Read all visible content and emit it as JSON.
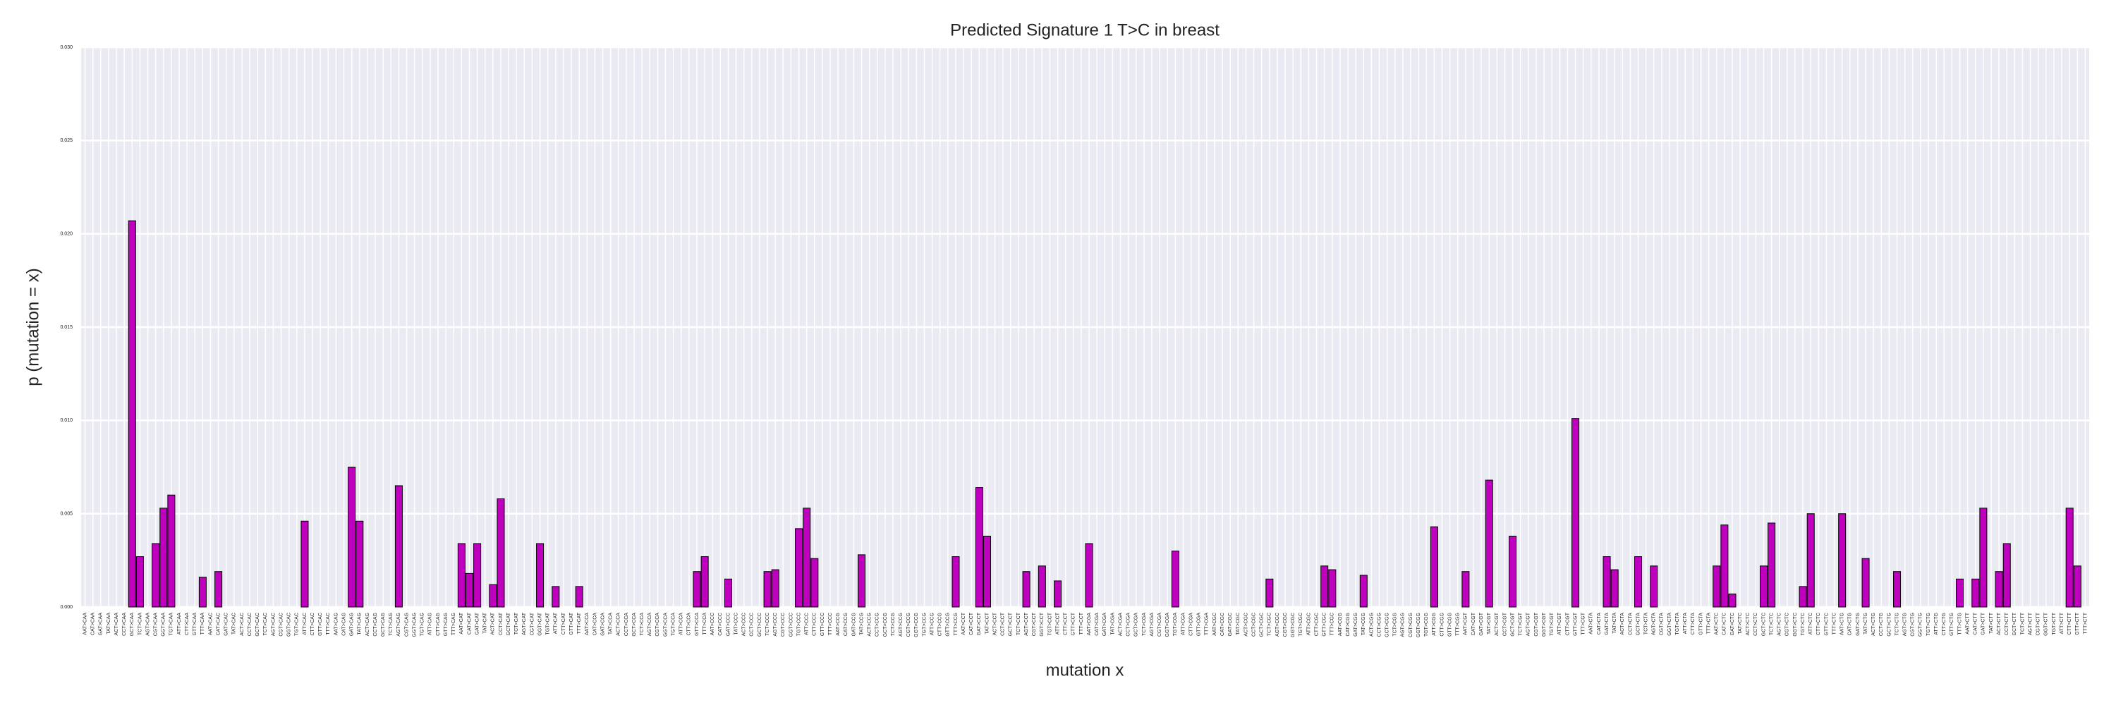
{
  "chart_data": {
    "type": "bar",
    "title": "Predicted Signature 1 T>C in breast",
    "xlabel": "mutation x",
    "ylabel": "p (mutation = x)",
    "color": "#bf00bf",
    "edgecolor": "#000000",
    "grid": true,
    "ylim": [
      0,
      0.03
    ],
    "yticks": [
      {
        "value": 0,
        "label": "0.000"
      },
      {
        "value": 0.005,
        "label": "0.005"
      },
      {
        "value": 0.01,
        "label": "0.010"
      },
      {
        "value": 0.015,
        "label": "0.015"
      },
      {
        "value": 0.02,
        "label": "0.020"
      },
      {
        "value": 0.025,
        "label": "0.025"
      },
      {
        "value": 0.03,
        "label": "0.030"
      }
    ],
    "categories": [
      "AAT>CAA",
      "CAT>CAA",
      "GAT>CAA",
      "TAT>CAA",
      "ACT>CAA",
      "CCT>CAA",
      "GCT>CAA",
      "TCT>CAA",
      "AGT>CAA",
      "CGT>CAA",
      "GGT>CAA",
      "TGT>CAA",
      "ATT>CAA",
      "CTT>CAA",
      "GTT>CAA",
      "TTT>CAA",
      "AAT>CAC",
      "CAT>CAC",
      "GAT>CAC",
      "TAT>CAC",
      "ACT>CAC",
      "CCT>CAC",
      "GCT>CAC",
      "TCT>CAC",
      "AGT>CAC",
      "CGT>CAC",
      "GGT>CAC",
      "TGT>CAC",
      "ATT>CAC",
      "CTT>CAC",
      "GTT>CAC",
      "TTT>CAC",
      "AAT>CAG",
      "CAT>CAG",
      "GAT>CAG",
      "TAT>CAG",
      "ACT>CAG",
      "CCT>CAG",
      "GCT>CAG",
      "TCT>CAG",
      "AGT>CAG",
      "CGT>CAG",
      "GGT>CAG",
      "TGT>CAG",
      "ATT>CAG",
      "CTT>CAG",
      "GTT>CAG",
      "TTT>CAG",
      "AAT>CAT",
      "CAT>CAT",
      "GAT>CAT",
      "TAT>CAT",
      "ACT>CAT",
      "CCT>CAT",
      "GCT>CAT",
      "TCT>CAT",
      "AGT>CAT",
      "CGT>CAT",
      "GGT>CAT",
      "TGT>CAT",
      "ATT>CAT",
      "CTT>CAT",
      "GTT>CAT",
      "TTT>CAT",
      "AAT>CCA",
      "CAT>CCA",
      "GAT>CCA",
      "TAT>CCA",
      "ACT>CCA",
      "CCT>CCA",
      "GCT>CCA",
      "TCT>CCA",
      "AGT>CCA",
      "CGT>CCA",
      "GGT>CCA",
      "TGT>CCA",
      "ATT>CCA",
      "CTT>CCA",
      "GTT>CCA",
      "TTT>CCA",
      "AAT>CCC",
      "CAT>CCC",
      "GAT>CCC",
      "TAT>CCC",
      "ACT>CCC",
      "CCT>CCC",
      "GCT>CCC",
      "TCT>CCC",
      "AGT>CCC",
      "CGT>CCC",
      "GGT>CCC",
      "TGT>CCC",
      "ATT>CCC",
      "CTT>CCC",
      "GTT>CCC",
      "TTT>CCC",
      "AAT>CCG",
      "CAT>CCG",
      "GAT>CCG",
      "TAT>CCG",
      "ACT>CCG",
      "CCT>CCG",
      "GCT>CCG",
      "TCT>CCG",
      "AGT>CCG",
      "CGT>CCG",
      "GGT>CCG",
      "TGT>CCG",
      "ATT>CCG",
      "CTT>CCG",
      "GTT>CCG",
      "TTT>CCG",
      "AAT>CCT",
      "CAT>CCT",
      "GAT>CCT",
      "TAT>CCT",
      "ACT>CCT",
      "CCT>CCT",
      "GCT>CCT",
      "TCT>CCT",
      "AGT>CCT",
      "CGT>CCT",
      "GGT>CCT",
      "TGT>CCT",
      "ATT>CCT",
      "CTT>CCT",
      "GTT>CCT",
      "TTT>CCT",
      "AAT>CGA",
      "CAT>CGA",
      "GAT>CGA",
      "TAT>CGA",
      "ACT>CGA",
      "CCT>CGA",
      "GCT>CGA",
      "TCT>CGA",
      "AGT>CGA",
      "CGT>CGA",
      "GGT>CGA",
      "TGT>CGA",
      "ATT>CGA",
      "CTT>CGA",
      "GTT>CGA",
      "TTT>CGA",
      "AAT>CGC",
      "CAT>CGC",
      "GAT>CGC",
      "TAT>CGC",
      "ACT>CGC",
      "CCT>CGC",
      "GCT>CGC",
      "TCT>CGC",
      "AGT>CGC",
      "CGT>CGC",
      "GGT>CGC",
      "TGT>CGC",
      "ATT>CGC",
      "CTT>CGC",
      "GTT>CGC",
      "TTT>CGC",
      "AAT>CGG",
      "CAT>CGG",
      "GAT>CGG",
      "TAT>CGG",
      "ACT>CGG",
      "CCT>CGG",
      "GCT>CGG",
      "TCT>CGG",
      "AGT>CGG",
      "CGT>CGG",
      "GGT>CGG",
      "TGT>CGG",
      "ATT>CGG",
      "CTT>CGG",
      "GTT>CGG",
      "TTT>CGG",
      "AAT>CGT",
      "CAT>CGT",
      "GAT>CGT",
      "TAT>CGT",
      "ACT>CGT",
      "CCT>CGT",
      "GCT>CGT",
      "TCT>CGT",
      "AGT>CGT",
      "CGT>CGT",
      "GGT>CGT",
      "TGT>CGT",
      "ATT>CGT",
      "CTT>CGT",
      "GTT>CGT",
      "TTT>CGT",
      "AAT>CTA",
      "CAT>CTA",
      "GAT>CTA",
      "TAT>CTA",
      "ACT>CTA",
      "CCT>CTA",
      "GCT>CTA",
      "TCT>CTA",
      "AGT>CTA",
      "CGT>CTA",
      "GGT>CTA",
      "TGT>CTA",
      "ATT>CTA",
      "CTT>CTA",
      "GTT>CTA",
      "TTT>CTA",
      "AAT>CTC",
      "CAT>CTC",
      "GAT>CTC",
      "TAT>CTC",
      "ACT>CTC",
      "CCT>CTC",
      "GCT>CTC",
      "TCT>CTC",
      "AGT>CTC",
      "CGT>CTC",
      "GGT>CTC",
      "TGT>CTC",
      "ATT>CTC",
      "CTT>CTC",
      "GTT>CTC",
      "TTT>CTC",
      "AAT>CTG",
      "CAT>CTG",
      "GAT>CTG",
      "TAT>CTG",
      "ACT>CTG",
      "CCT>CTG",
      "GCT>CTG",
      "TCT>CTG",
      "AGT>CTG",
      "CGT>CTG",
      "GGT>CTG",
      "TGT>CTG",
      "ATT>CTG",
      "CTT>CTG",
      "GTT>CTG",
      "TTT>CTG",
      "AAT>CTT",
      "CAT>CTT",
      "GAT>CTT",
      "TAT>CTT",
      "ACT>CTT",
      "CCT>CTT",
      "GCT>CTT",
      "TCT>CTT",
      "AGT>CTT",
      "CGT>CTT",
      "GGT>CTT",
      "TGT>CTT",
      "ATT>CTT",
      "CTT>CTT",
      "GTT>CTT",
      "TTT>CTT"
    ],
    "values": [
      0,
      0,
      0,
      0,
      0,
      0,
      0.0207,
      0.0027,
      0,
      0.0034,
      0.0053,
      0.006,
      0,
      0,
      0,
      0.0016,
      0,
      0.0019,
      0,
      0,
      0,
      0,
      0,
      0,
      0,
      0,
      0,
      0,
      0.0046,
      0,
      0,
      0,
      0,
      0,
      0.0075,
      0.0046,
      0,
      0,
      0,
      0,
      0.0065,
      0,
      0,
      0,
      0,
      0,
      0,
      0,
      0.0034,
      0.0018,
      0.0034,
      0,
      0.0012,
      0.0058,
      0,
      0,
      0,
      0,
      0.0034,
      0,
      0.0011,
      0,
      0,
      0.0011,
      0,
      0,
      0,
      0,
      0,
      0,
      0,
      0,
      0,
      0,
      0,
      0,
      0,
      0,
      0.0019,
      0.0027,
      0,
      0,
      0.0015,
      0,
      0,
      0,
      0,
      0.0019,
      0.002,
      0,
      0,
      0.0042,
      0.0053,
      0.0026,
      0,
      0,
      0,
      0,
      0,
      0.0028,
      0,
      0,
      0,
      0,
      0,
      0,
      0,
      0,
      0,
      0,
      0,
      0.0027,
      0,
      0,
      0.0064,
      0.0038,
      0,
      0,
      0,
      0,
      0.0019,
      0,
      0.0022,
      0,
      0.0014,
      0,
      0,
      0,
      0.0034,
      0,
      0,
      0,
      0,
      0,
      0,
      0,
      0,
      0,
      0,
      0.003,
      0,
      0,
      0,
      0,
      0,
      0,
      0,
      0,
      0,
      0,
      0,
      0.0015,
      0,
      0,
      0,
      0,
      0,
      0,
      0.0022,
      0.002,
      0,
      0,
      0,
      0.0017,
      0,
      0,
      0,
      0,
      0,
      0,
      0,
      0,
      0.0043,
      0,
      0,
      0,
      0.0019,
      0,
      0,
      0.0068,
      0,
      0,
      0.0038,
      0,
      0,
      0,
      0,
      0,
      0,
      0,
      0.0101,
      0,
      0,
      0,
      0.0027,
      0.002,
      0,
      0,
      0.0027,
      0,
      0.0022,
      0,
      0,
      0,
      0,
      0,
      0,
      0,
      0.0022,
      0.0044,
      0.0007,
      0,
      0,
      0,
      0.0022,
      0.0045,
      0,
      0,
      0,
      0.0011,
      0.005,
      0,
      0,
      0,
      0.005,
      0,
      0,
      0.0026,
      0,
      0,
      0,
      0.0019,
      0,
      0,
      0,
      0,
      0,
      0,
      0,
      0.0015,
      0,
      0.0015,
      0.0053,
      0,
      0.0019,
      0.0034,
      0,
      0,
      0,
      0,
      0,
      0,
      0,
      0.0053,
      0.0022,
      0
    ]
  }
}
